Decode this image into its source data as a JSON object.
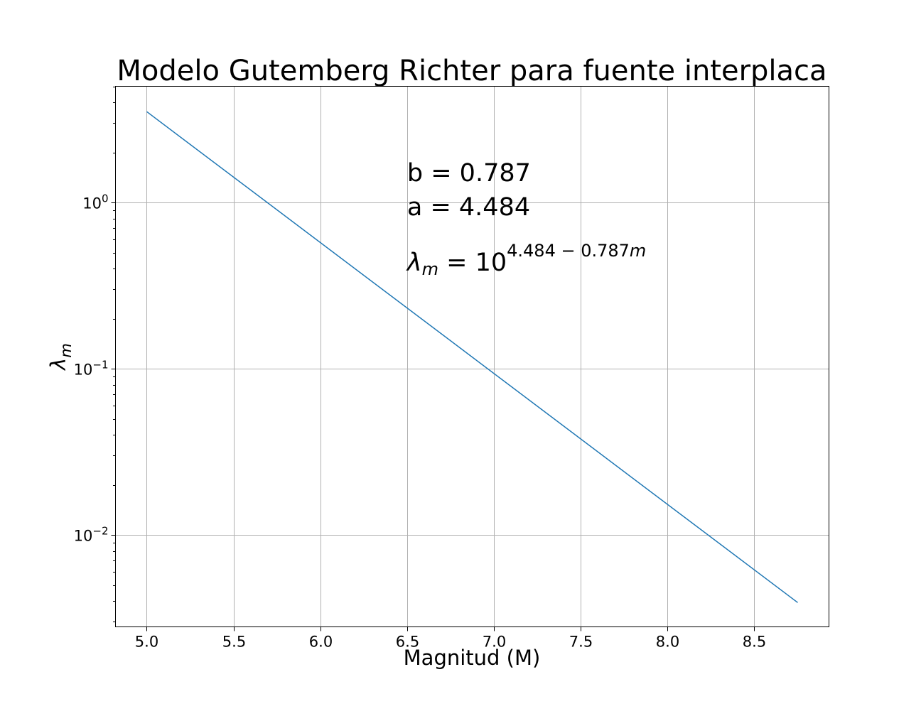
{
  "chart_data": {
    "type": "line",
    "title": "Modelo Gutemberg Richter para fuente interplaca",
    "xlabel": "Magnitud (M)",
    "ylabel_symbol": "λ",
    "ylabel_subscript": "m",
    "xscale": "linear",
    "yscale": "log",
    "xlim": [
      4.82,
      8.93
    ],
    "ylim": [
      0.0028,
      5.0
    ],
    "grid": true,
    "x_ticks": [
      5.0,
      5.5,
      6.0,
      6.5,
      7.0,
      7.5,
      8.0,
      8.5
    ],
    "x_tick_labels": [
      "5.0",
      "5.5",
      "6.0",
      "6.5",
      "7.0",
      "7.5",
      "8.0",
      "8.5"
    ],
    "y_ticks": [
      {
        "value": 1,
        "base": "10",
        "exp": "0"
      },
      {
        "value": 0.1,
        "base": "10",
        "exp": "−1"
      },
      {
        "value": 0.01,
        "base": "10",
        "exp": "−2"
      }
    ],
    "series": [
      {
        "color": "#1f77b4",
        "x": [
          5.0,
          8.75
        ],
        "y": [
          3.52,
          0.00392
        ]
      }
    ],
    "annotations": {
      "b_text": "b = 0.787",
      "a_text": "a = 4.484",
      "formula_lhs": "λ",
      "formula_lhs_sub": "m",
      "formula_eq": " = 10",
      "formula_exp_num": "4.484 − 0.787",
      "formula_exp_var": "m",
      "anchor_x": 6.5
    }
  }
}
